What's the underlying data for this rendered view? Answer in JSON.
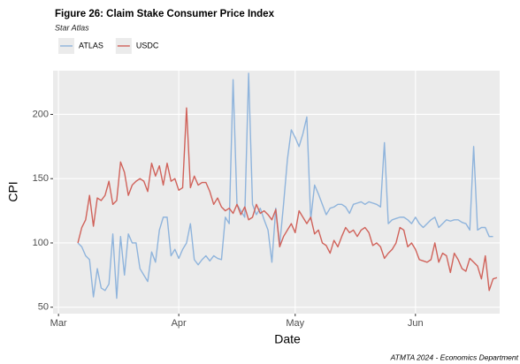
{
  "chart_data": {
    "type": "line",
    "title": "Figure 26: Claim Stake Consumer Price Index",
    "subtitle": "Star Atlas",
    "x_label": "Date",
    "y_label": "CPI",
    "caption": "ATMTA 2024 - Economics Department",
    "x": [
      5,
      6,
      7,
      8,
      9,
      10,
      11,
      12,
      13,
      14,
      15,
      16,
      17,
      18,
      19,
      20,
      21,
      22,
      23,
      24,
      25,
      26,
      27,
      28,
      29,
      30,
      31,
      32,
      33,
      34,
      35,
      36,
      37,
      38,
      39,
      40,
      41,
      42,
      43,
      44,
      45,
      46,
      47,
      48,
      49,
      50,
      51,
      52,
      53,
      54,
      55,
      56,
      57,
      58,
      59,
      60,
      61,
      62,
      63,
      64,
      65,
      66,
      67,
      68,
      69,
      70,
      71,
      72,
      73,
      74,
      75,
      76,
      77,
      78,
      79,
      80,
      81,
      82,
      83,
      84,
      85,
      86,
      87,
      88,
      89,
      90,
      91,
      92,
      93,
      94,
      95,
      96,
      97,
      98,
      99,
      100,
      101,
      102,
      103,
      104,
      105,
      106,
      107,
      108,
      109,
      110,
      111,
      112,
      113
    ],
    "series": [
      {
        "name": "ATLAS",
        "color": "#8fb4dc",
        "values": [
          100,
          97,
          90,
          87,
          58,
          80,
          65,
          63,
          68,
          107,
          57,
          105,
          75,
          107,
          100,
          100,
          80,
          75,
          70,
          93,
          85,
          110,
          120,
          120,
          90,
          95,
          88,
          95,
          100,
          115,
          87,
          83,
          87,
          90,
          86,
          90,
          88,
          87,
          120,
          115,
          227,
          130,
          125,
          120,
          232,
          130,
          122,
          127,
          118,
          110,
          85,
          127,
          98,
          130,
          165,
          188,
          182,
          175,
          185,
          198,
          118,
          145,
          138,
          130,
          122,
          127,
          128,
          130,
          130,
          128,
          123,
          130,
          131,
          132,
          130,
          132,
          131,
          130,
          128,
          178,
          115,
          118,
          119,
          120,
          120,
          118,
          115,
          120,
          115,
          112,
          115,
          118,
          120,
          112,
          115,
          118,
          117,
          118,
          118,
          116,
          115,
          110,
          175,
          110,
          112,
          112,
          105,
          105,
          null
        ]
      },
      {
        "name": "USDC",
        "color": "#d0625a",
        "values": [
          100,
          112,
          118,
          137,
          113,
          135,
          133,
          137,
          148,
          130,
          133,
          163,
          155,
          137,
          145,
          148,
          150,
          148,
          140,
          162,
          152,
          160,
          145,
          162,
          148,
          150,
          141,
          143,
          205,
          143,
          152,
          145,
          147,
          147,
          140,
          130,
          135,
          128,
          125,
          127,
          123,
          130,
          122,
          128,
          118,
          120,
          130,
          123,
          125,
          122,
          118,
          126,
          97,
          105,
          110,
          115,
          108,
          125,
          120,
          115,
          120,
          107,
          110,
          100,
          98,
          92,
          102,
          97,
          105,
          112,
          108,
          110,
          105,
          110,
          112,
          108,
          98,
          100,
          97,
          88,
          92,
          95,
          100,
          112,
          110,
          97,
          100,
          95,
          87,
          86,
          85,
          87,
          100,
          85,
          92,
          90,
          77,
          92,
          87,
          80,
          78,
          88,
          85,
          82,
          72,
          90,
          63,
          72,
          73
        ]
      }
    ],
    "xlim": [
      -1.4,
      113.7
    ],
    "xticks": [
      {
        "value": 0,
        "label": "Mar"
      },
      {
        "value": 31,
        "label": "Apr"
      },
      {
        "value": 61,
        "label": "May"
      },
      {
        "value": 92,
        "label": "Jun"
      }
    ],
    "ylim": [
      45,
      234
    ],
    "yticks": [
      50,
      100,
      150,
      200
    ],
    "grid": true,
    "legend": "top"
  }
}
